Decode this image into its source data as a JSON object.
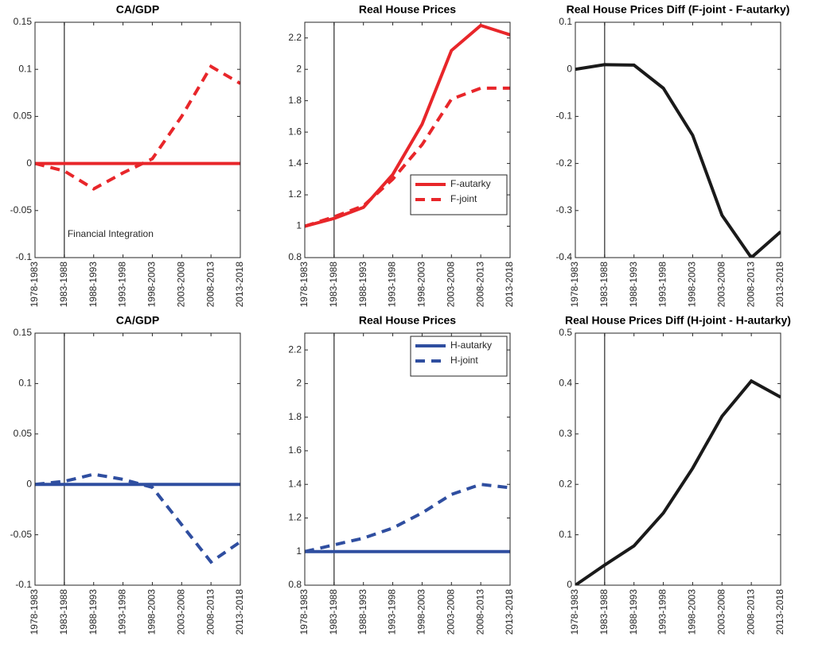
{
  "chart_data": [
    {
      "type": "line",
      "title": "CA/GDP",
      "categories": [
        "1978-1983",
        "1983-1988",
        "1988-1993",
        "1993-1998",
        "1998-2003",
        "2003-2008",
        "2008-2013",
        "2013-2018"
      ],
      "series": [
        {
          "color": "#e8262a",
          "style": "solid",
          "values": [
            0,
            0,
            0,
            0,
            0,
            0,
            0,
            0
          ]
        },
        {
          "color": "#e8262a",
          "style": "dashed",
          "values": [
            0,
            -0.008,
            -0.027,
            -0.01,
            0.005,
            0.05,
            0.103,
            0.085
          ]
        }
      ],
      "ylim": [
        -0.1,
        0.15
      ],
      "yticks": [
        -0.1,
        -0.05,
        0,
        0.05,
        0.1,
        0.15
      ],
      "grid": false,
      "vline": "1983-1988",
      "annotation": "Financial Integration"
    },
    {
      "type": "line",
      "title": "Real House Prices",
      "categories": [
        "1978-1983",
        "1983-1988",
        "1988-1993",
        "1993-1998",
        "1998-2003",
        "2003-2008",
        "2008-2013",
        "2013-2018"
      ],
      "series": [
        {
          "name": "F-autarky",
          "color": "#e8262a",
          "style": "solid",
          "values": [
            1,
            1.05,
            1.12,
            1.33,
            1.65,
            2.12,
            2.28,
            2.22
          ]
        },
        {
          "name": "F-joint",
          "color": "#e8262a",
          "style": "dashed",
          "values": [
            1,
            1.06,
            1.13,
            1.3,
            1.52,
            1.81,
            1.88,
            1.88
          ]
        }
      ],
      "ylim": [
        0.8,
        2.3
      ],
      "yticks": [
        0.8,
        1,
        1.2,
        1.4,
        1.6,
        1.8,
        2,
        2.2
      ],
      "grid": false,
      "vline": "1983-1988",
      "legend": "lower right"
    },
    {
      "type": "line",
      "title": "Real House Prices Diff (F-joint - F-autarky)",
      "categories": [
        "1978-1983",
        "1983-1988",
        "1988-1993",
        "1993-1998",
        "1998-2003",
        "2003-2008",
        "2008-2013",
        "2013-2018"
      ],
      "series": [
        {
          "color": "#1a1a1a",
          "style": "solid",
          "values": [
            0,
            0.01,
            0.009,
            -0.04,
            -0.14,
            -0.31,
            -0.4,
            -0.345
          ]
        }
      ],
      "ylim": [
        -0.4,
        0.1
      ],
      "yticks": [
        -0.4,
        -0.3,
        -0.2,
        -0.1,
        0,
        0.1
      ],
      "grid": false,
      "vline": "1983-1988"
    },
    {
      "type": "line",
      "title": "CA/GDP",
      "categories": [
        "1978-1983",
        "1983-1988",
        "1988-1993",
        "1993-1998",
        "1998-2003",
        "2003-2008",
        "2008-2013",
        "2013-2018"
      ],
      "series": [
        {
          "color": "#2f4ea0",
          "style": "solid",
          "values": [
            0,
            0,
            0,
            0,
            0,
            0,
            0,
            0
          ]
        },
        {
          "color": "#2f4ea0",
          "style": "dashed",
          "values": [
            0,
            0.003,
            0.01,
            0.005,
            -0.003,
            -0.04,
            -0.077,
            -0.057
          ]
        }
      ],
      "ylim": [
        -0.1,
        0.15
      ],
      "yticks": [
        -0.1,
        -0.05,
        0,
        0.05,
        0.1,
        0.15
      ],
      "grid": false,
      "vline": "1983-1988"
    },
    {
      "type": "line",
      "title": "Real House Prices",
      "categories": [
        "1978-1983",
        "1983-1988",
        "1988-1993",
        "1993-1998",
        "1998-2003",
        "2003-2008",
        "2008-2013",
        "2013-2018"
      ],
      "series": [
        {
          "name": "H-autarky",
          "color": "#2f4ea0",
          "style": "solid",
          "values": [
            1,
            1,
            1,
            1,
            1,
            1,
            1,
            1
          ]
        },
        {
          "name": "H-joint",
          "color": "#2f4ea0",
          "style": "dashed",
          "values": [
            1,
            1.04,
            1.08,
            1.14,
            1.23,
            1.34,
            1.4,
            1.38
          ]
        }
      ],
      "ylim": [
        0.8,
        2.3
      ],
      "yticks": [
        0.8,
        1,
        1.2,
        1.4,
        1.6,
        1.8,
        2,
        2.2
      ],
      "grid": false,
      "vline": "1983-1988",
      "legend": "upper right"
    },
    {
      "type": "line",
      "title": "Real House Prices Diff (H-joint - H-autarky)",
      "categories": [
        "1978-1983",
        "1983-1988",
        "1988-1993",
        "1993-1998",
        "1998-2003",
        "2003-2008",
        "2008-2013",
        "2013-2018"
      ],
      "series": [
        {
          "color": "#1a1a1a",
          "style": "solid",
          "values": [
            0,
            0.04,
            0.078,
            0.143,
            0.232,
            0.335,
            0.405,
            0.373
          ]
        }
      ],
      "ylim": [
        0,
        0.5
      ],
      "yticks": [
        0,
        0.1,
        0.2,
        0.3,
        0.4,
        0.5
      ],
      "grid": false,
      "vline": "1983-1988"
    }
  ]
}
